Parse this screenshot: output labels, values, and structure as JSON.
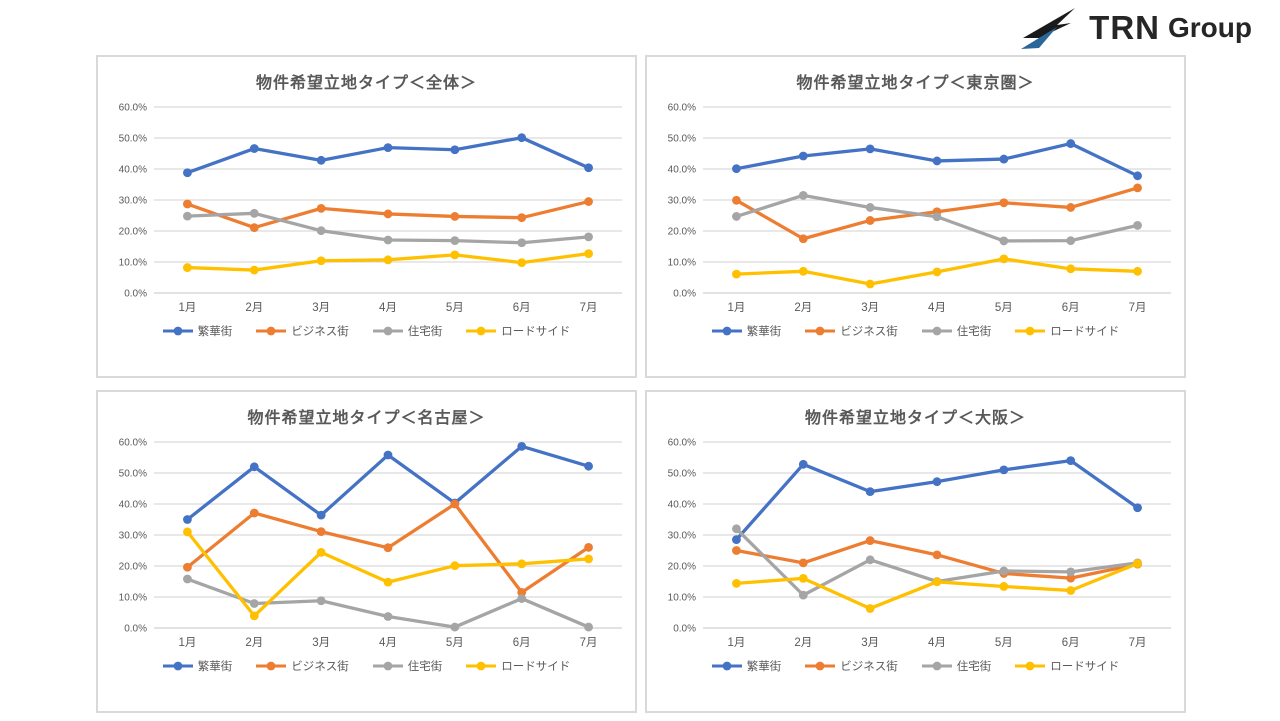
{
  "page": {
    "background": "#FFFFFF"
  },
  "logo": {
    "brand": "TRN",
    "brand_suffix": "Group",
    "icon": "trn-arrow-logo",
    "text_color": "#262626",
    "icon_black": "#1A1A1A",
    "icon_blue": "#2B6699"
  },
  "palette": {
    "blue": "#4472C4",
    "orange": "#ED7D31",
    "gray": "#A5A5A5",
    "yellow": "#FFC000",
    "grid": "#D9D9D9",
    "axis_text": "#595959",
    "panel_border": "#D9D9D9"
  },
  "axis": {
    "y_ticks": [
      {
        "label": "60.0%",
        "value": 60
      },
      {
        "label": "50.0%",
        "value": 50
      },
      {
        "label": "40.0%",
        "value": 40
      },
      {
        "label": "30.0%",
        "value": 30
      },
      {
        "label": "20.0%",
        "value": 20
      },
      {
        "label": "10.0%",
        "value": 10
      },
      {
        "label": "0.0%",
        "value": 0
      }
    ]
  },
  "chart_data": [
    {
      "type": "line",
      "title": "物件希望立地タイプ＜全体＞",
      "categories": [
        "1月",
        "2月",
        "3月",
        "4月",
        "5月",
        "6月",
        "7月"
      ],
      "ylim": [
        0,
        60
      ],
      "grid": true,
      "legend_position": "bottom",
      "series": [
        {
          "name": "繁華街",
          "color": "#4472C4",
          "values": [
            38.8,
            46.6,
            42.8,
            46.9,
            46.2,
            50.1,
            40.4
          ]
        },
        {
          "name": "ビジネス街",
          "color": "#ED7D31",
          "values": [
            28.7,
            21.1,
            27.3,
            25.5,
            24.7,
            24.3,
            29.5
          ]
        },
        {
          "name": "住宅街",
          "color": "#A5A5A5",
          "values": [
            24.8,
            25.7,
            20.1,
            17.1,
            16.9,
            16.2,
            18.1
          ]
        },
        {
          "name": "ロードサイド",
          "color": "#FFC000",
          "values": [
            8.2,
            7.4,
            10.4,
            10.7,
            12.3,
            9.8,
            12.7
          ]
        }
      ]
    },
    {
      "type": "line",
      "title": "物件希望立地タイプ＜東京圏＞",
      "categories": [
        "1月",
        "2月",
        "3月",
        "4月",
        "5月",
        "6月",
        "7月"
      ],
      "ylim": [
        0,
        60
      ],
      "grid": true,
      "legend_position": "bottom",
      "series": [
        {
          "name": "繁華街",
          "color": "#4472C4",
          "values": [
            40.1,
            44.2,
            46.5,
            42.6,
            43.2,
            48.2,
            37.8
          ]
        },
        {
          "name": "ビジネス街",
          "color": "#ED7D31",
          "values": [
            29.9,
            17.5,
            23.4,
            26.2,
            29.1,
            27.6,
            33.9
          ]
        },
        {
          "name": "住宅街",
          "color": "#A5A5A5",
          "values": [
            24.7,
            31.5,
            27.6,
            24.6,
            16.8,
            16.9,
            21.8
          ]
        },
        {
          "name": "ロードサイド",
          "color": "#FFC000",
          "values": [
            6.1,
            7.0,
            2.9,
            6.8,
            11.0,
            7.8,
            7.0
          ]
        }
      ]
    },
    {
      "type": "line",
      "title": "物件希望立地タイプ＜名古屋＞",
      "categories": [
        "1月",
        "2月",
        "3月",
        "4月",
        "5月",
        "6月",
        "7月"
      ],
      "ylim": [
        0,
        60
      ],
      "grid": true,
      "legend_position": "bottom",
      "series": [
        {
          "name": "繁華街",
          "color": "#4472C4",
          "values": [
            35.0,
            52.0,
            36.4,
            55.8,
            40.3,
            58.6,
            52.2
          ]
        },
        {
          "name": "ビジネス街",
          "color": "#ED7D31",
          "values": [
            19.6,
            37.1,
            31.1,
            25.9,
            40.0,
            11.5,
            26.0
          ]
        },
        {
          "name": "住宅街",
          "color": "#A5A5A5",
          "values": [
            15.8,
            7.9,
            8.8,
            3.7,
            0.3,
            9.5,
            0.3
          ]
        },
        {
          "name": "ロードサイド",
          "color": "#FFC000",
          "values": [
            31.0,
            3.9,
            24.4,
            14.8,
            20.1,
            20.7,
            22.3
          ]
        }
      ]
    },
    {
      "type": "line",
      "title": "物件希望立地タイプ＜大阪＞",
      "categories": [
        "1月",
        "2月",
        "3月",
        "4月",
        "5月",
        "6月",
        "7月"
      ],
      "ylim": [
        0,
        60
      ],
      "grid": true,
      "legend_position": "bottom",
      "series": [
        {
          "name": "繁華街",
          "color": "#4472C4",
          "values": [
            28.5,
            52.8,
            44.0,
            47.2,
            51.0,
            54.0,
            38.8
          ]
        },
        {
          "name": "ビジネス街",
          "color": "#ED7D31",
          "values": [
            25.0,
            21.0,
            28.2,
            23.6,
            17.6,
            16.1,
            20.6
          ]
        },
        {
          "name": "住宅街",
          "color": "#A5A5A5",
          "values": [
            32.0,
            10.6,
            22.0,
            15.0,
            18.4,
            18.1,
            21.0
          ]
        },
        {
          "name": "ロードサイド",
          "color": "#FFC000",
          "values": [
            14.4,
            16.0,
            6.3,
            14.9,
            13.4,
            12.1,
            20.8
          ]
        }
      ]
    }
  ]
}
